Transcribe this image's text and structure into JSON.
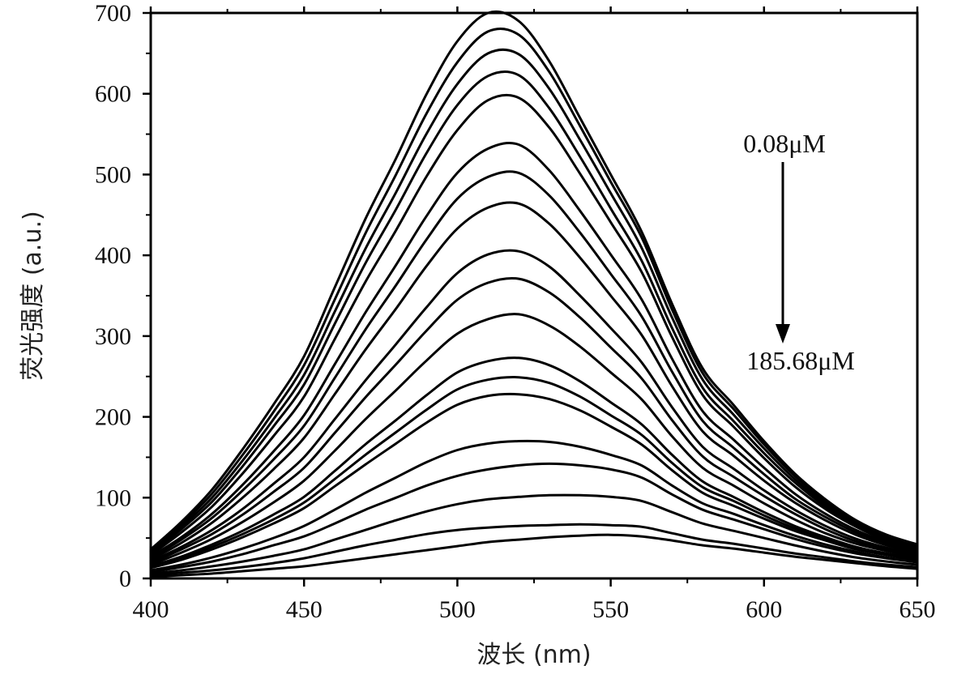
{
  "chart_data": {
    "type": "line",
    "title": "",
    "xlabel": "波长 (nm)",
    "ylabel": "荧光强度 (a.u.)",
    "xlim": [
      400,
      650
    ],
    "ylim": [
      0,
      700
    ],
    "x_ticks": [
      400,
      450,
      500,
      550,
      600,
      650
    ],
    "y_ticks": [
      0,
      100,
      200,
      300,
      400,
      500,
      600,
      700
    ],
    "grid": false,
    "legend": "none",
    "line_color": "#000000",
    "annotations": {
      "top_label": "0.08μM",
      "bottom_label": "185.68μM",
      "arrow": "down"
    },
    "x": [
      400,
      410,
      420,
      430,
      440,
      450,
      460,
      470,
      480,
      490,
      500,
      510,
      520,
      530,
      540,
      550,
      560,
      570,
      580,
      590,
      600,
      610,
      620,
      630,
      640,
      650
    ],
    "series": [
      {
        "values": [
          36,
          70,
          110,
          160,
          215,
          275,
          360,
          445,
          520,
          600,
          665,
          700,
          690,
          640,
          570,
          500,
          430,
          340,
          260,
          215,
          170,
          130,
          98,
          72,
          54,
          42
        ]
      },
      {
        "values": [
          34,
          67,
          105,
          153,
          206,
          264,
          345,
          427,
          500,
          576,
          639,
          677,
          673,
          627,
          560,
          491,
          423,
          333,
          254,
          210,
          166,
          127,
          95,
          70,
          52,
          40
        ]
      },
      {
        "values": [
          33,
          64,
          100,
          146,
          197,
          252,
          330,
          408,
          478,
          551,
          612,
          650,
          649,
          606,
          543,
          477,
          410,
          323,
          246,
          203,
          161,
          123,
          92,
          68,
          50,
          39
        ]
      },
      {
        "values": [
          31,
          61,
          95,
          139,
          188,
          240,
          315,
          390,
          457,
          527,
          586,
          622,
          623,
          582,
          522,
          458,
          394,
          310,
          236,
          195,
          155,
          119,
          89,
          66,
          49,
          38
        ]
      },
      {
        "values": [
          29,
          57,
          89,
          130,
          176,
          225,
          296,
          367,
          431,
          498,
          555,
          592,
          595,
          558,
          501,
          441,
          380,
          299,
          227,
          188,
          149,
          114,
          86,
          64,
          47,
          37
        ]
      },
      {
        "values": [
          27,
          51,
          80,
          116,
          157,
          202,
          265,
          329,
          388,
          449,
          502,
          532,
          537,
          505,
          455,
          401,
          346,
          272,
          207,
          172,
          137,
          105,
          80,
          60,
          45,
          35
        ]
      },
      {
        "values": [
          25,
          48,
          75,
          109,
          147,
          189,
          248,
          308,
          363,
          420,
          470,
          497,
          502,
          474,
          428,
          377,
          325,
          256,
          195,
          162,
          129,
          99,
          76,
          57,
          43,
          34
        ]
      },
      {
        "values": [
          23,
          44,
          69,
          100,
          135,
          174,
          228,
          283,
          334,
          387,
          433,
          459,
          464,
          439,
          397,
          350,
          302,
          238,
          182,
          152,
          121,
          94,
          72,
          54,
          41,
          32
        ]
      },
      {
        "values": [
          21,
          39,
          60,
          86,
          117,
          150,
          197,
          245,
          290,
          336,
          378,
          401,
          405,
          386,
          350,
          310,
          268,
          212,
          163,
          136,
          109,
          85,
          65,
          49,
          38,
          30
        ]
      },
      {
        "values": [
          19,
          36,
          55,
          79,
          107,
          137,
          180,
          224,
          265,
          307,
          345,
          366,
          371,
          354,
          323,
          286,
          248,
          196,
          151,
          126,
          102,
          80,
          61,
          46,
          36,
          28
        ]
      },
      {
        "values": [
          17,
          32,
          49,
          70,
          94,
          121,
          158,
          197,
          233,
          270,
          303,
          321,
          327,
          313,
          287,
          255,
          222,
          176,
          137,
          115,
          93,
          73,
          56,
          43,
          34,
          27
        ]
      },
      {
        "values": [
          15,
          27,
          42,
          59,
          79,
          101,
          133,
          166,
          196,
          227,
          255,
          269,
          273,
          264,
          244,
          218,
          191,
          153,
          120,
          101,
          82,
          65,
          51,
          39,
          31,
          25
        ]
      },
      {
        "values": [
          14,
          25,
          39,
          55,
          73,
          94,
          123,
          153,
          181,
          209,
          234,
          246,
          249,
          242,
          225,
          202,
          178,
          143,
          113,
          96,
          78,
          62,
          49,
          38,
          30,
          24
        ]
      },
      {
        "values": [
          13,
          23,
          36,
          51,
          68,
          87,
          114,
          141,
          167,
          193,
          215,
          226,
          228,
          222,
          208,
          188,
          166,
          134,
          106,
          90,
          74,
          59,
          47,
          36,
          29,
          23
        ]
      },
      {
        "values": [
          10,
          17,
          26,
          37,
          50,
          65,
          85,
          106,
          125,
          144,
          159,
          167,
          170,
          169,
          163,
          153,
          140,
          115,
          93,
          80,
          66,
          53,
          42,
          33,
          26,
          21
        ]
      },
      {
        "values": [
          8,
          14,
          21,
          30,
          41,
          52,
          68,
          85,
          100,
          115,
          127,
          135,
          140,
          142,
          140,
          135,
          125,
          104,
          85,
          73,
          61,
          49,
          39,
          31,
          25,
          20
        ]
      },
      {
        "values": [
          6,
          10,
          15,
          21,
          28,
          36,
          48,
          60,
          72,
          83,
          92,
          98,
          101,
          103,
          103,
          101,
          96,
          82,
          68,
          59,
          50,
          41,
          33,
          26,
          21,
          17
        ]
      },
      {
        "values": [
          4,
          7,
          10,
          14,
          19,
          25,
          33,
          41,
          48,
          55,
          60,
          63,
          65,
          66,
          67,
          66,
          64,
          56,
          48,
          43,
          37,
          31,
          26,
          21,
          17,
          14
        ]
      },
      {
        "values": [
          2,
          4,
          6,
          9,
          12,
          15,
          20,
          25,
          30,
          35,
          40,
          45,
          48,
          51,
          53,
          54,
          52,
          47,
          41,
          37,
          32,
          27,
          23,
          19,
          15,
          12
        ]
      }
    ]
  }
}
